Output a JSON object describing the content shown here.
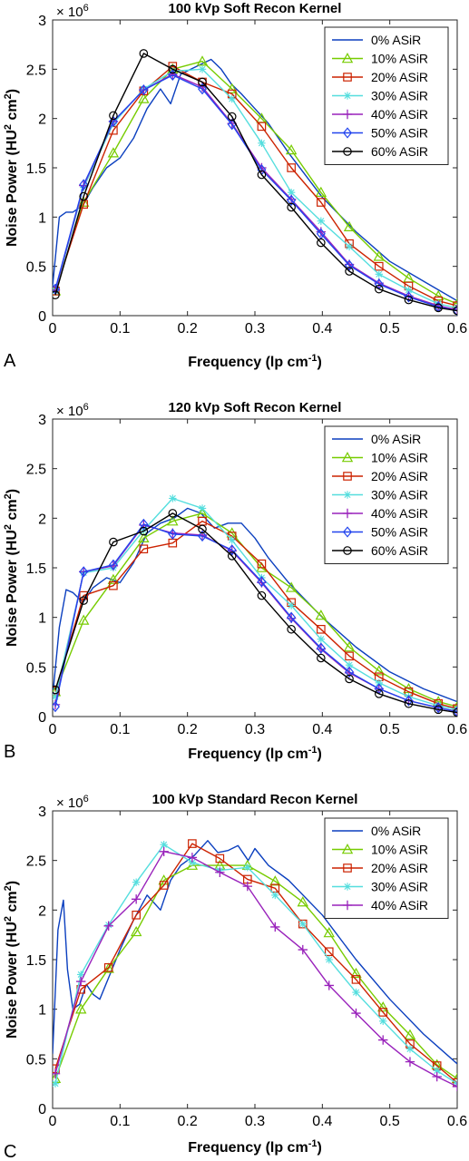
{
  "figure": {
    "colors": {
      "0% ASiR": "#0b3fbf",
      "10% ASiR": "#77cc00",
      "20% ASiR": "#cc2200",
      "30% ASiR": "#55dede",
      "40% ASiR": "#9922bb",
      "50% ASiR": "#2244ee",
      "60% ASiR": "#000000"
    },
    "markers": {
      "0% ASiR": "none",
      "10% ASiR": "triangle",
      "20% ASiR": "square",
      "30% ASiR": "asterisk",
      "40% ASiR": "plus",
      "50% ASiR": "diamond",
      "60% ASiR": "circle"
    }
  },
  "chart_data": [
    {
      "type": "line",
      "panel_label": "A",
      "title": "100 kVp Soft Recon Kernel",
      "xlabel": "Frequency (lp cm",
      "xlabel_sup": "-1",
      "xlabel_end": ")",
      "ylabel": "Noise Power (HU",
      "ylabel_sup": "2",
      "ylabel_mid": " cm",
      "ylabel_sup2": "2",
      "ylabel_end": ")",
      "y_multiplier": "× 10",
      "y_multiplier_exp": "6",
      "xlim": [
        0,
        0.6
      ],
      "ylim": [
        0,
        3
      ],
      "xticks": [
        "0",
        "0.1",
        "0.2",
        "0.3",
        "0.4",
        "0.5",
        "0.6"
      ],
      "yticks": [
        "0",
        "0.5",
        "1",
        "1.5",
        "2",
        "2.5",
        "3"
      ],
      "legend_placement": "top-right",
      "series": [
        {
          "name": "0% ASiR",
          "x": [
            0.0,
            0.01,
            0.02,
            0.03,
            0.045,
            0.06,
            0.08,
            0.1,
            0.12,
            0.14,
            0.16,
            0.175,
            0.19,
            0.205,
            0.22,
            0.235,
            0.25,
            0.265,
            0.28,
            0.3,
            0.32,
            0.35,
            0.4,
            0.45,
            0.5,
            0.55,
            0.6
          ],
          "y": [
            0.3,
            1.0,
            1.05,
            1.05,
            1.12,
            1.3,
            1.5,
            1.6,
            1.8,
            2.1,
            2.3,
            2.15,
            2.45,
            2.5,
            2.55,
            2.6,
            2.5,
            2.35,
            2.25,
            2.1,
            1.95,
            1.65,
            1.2,
            0.85,
            0.55,
            0.35,
            0.15
          ]
        },
        {
          "name": "10% ASiR",
          "x": [
            0.004,
            0.046,
            0.09,
            0.135,
            0.178,
            0.222,
            0.266,
            0.31,
            0.354,
            0.398,
            0.44,
            0.484,
            0.528,
            0.572,
            0.6
          ],
          "y": [
            0.25,
            1.15,
            1.65,
            2.2,
            2.5,
            2.58,
            2.3,
            2.0,
            1.68,
            1.25,
            0.9,
            0.6,
            0.38,
            0.2,
            0.12
          ]
        },
        {
          "name": "20% ASiR",
          "x": [
            0.004,
            0.046,
            0.09,
            0.135,
            0.178,
            0.222,
            0.266,
            0.31,
            0.354,
            0.398,
            0.44,
            0.484,
            0.528,
            0.572,
            0.6
          ],
          "y": [
            0.25,
            1.13,
            1.88,
            2.28,
            2.53,
            2.37,
            2.25,
            1.92,
            1.5,
            1.15,
            0.73,
            0.5,
            0.3,
            0.15,
            0.1
          ]
        },
        {
          "name": "30% ASiR",
          "x": [
            0.004,
            0.046,
            0.09,
            0.135,
            0.178,
            0.222,
            0.266,
            0.31,
            0.354,
            0.398,
            0.44,
            0.484,
            0.528,
            0.572,
            0.6
          ],
          "y": [
            0.25,
            1.3,
            1.95,
            2.3,
            2.48,
            2.5,
            2.2,
            1.75,
            1.25,
            0.96,
            0.7,
            0.42,
            0.26,
            0.12,
            0.08
          ]
        },
        {
          "name": "40% ASiR",
          "x": [
            0.004,
            0.046,
            0.09,
            0.135,
            0.178,
            0.222,
            0.266,
            0.31,
            0.354,
            0.398,
            0.44,
            0.484,
            0.528,
            0.572,
            0.6
          ],
          "y": [
            0.26,
            1.32,
            1.97,
            2.29,
            2.45,
            2.32,
            1.95,
            1.5,
            1.18,
            0.85,
            0.52,
            0.33,
            0.2,
            0.1,
            0.06
          ]
        },
        {
          "name": "50% ASiR",
          "x": [
            0.004,
            0.046,
            0.09,
            0.135,
            0.178,
            0.222,
            0.266,
            0.31,
            0.354,
            0.398,
            0.44,
            0.484,
            0.528,
            0.572,
            0.6
          ],
          "y": [
            0.27,
            1.33,
            1.97,
            2.29,
            2.44,
            2.3,
            1.94,
            1.48,
            1.17,
            0.83,
            0.51,
            0.32,
            0.19,
            0.09,
            0.05
          ]
        },
        {
          "name": "60% ASiR",
          "x": [
            0.004,
            0.046,
            0.09,
            0.135,
            0.178,
            0.222,
            0.266,
            0.31,
            0.354,
            0.398,
            0.44,
            0.484,
            0.528,
            0.572,
            0.6
          ],
          "y": [
            0.21,
            1.21,
            2.03,
            2.66,
            2.5,
            2.37,
            2.02,
            1.43,
            1.1,
            0.74,
            0.45,
            0.27,
            0.16,
            0.08,
            0.05
          ]
        }
      ]
    },
    {
      "type": "line",
      "panel_label": "B",
      "title": "120 kVp Soft Recon Kernel",
      "xlabel": "Frequency (lp cm",
      "xlabel_sup": "-1",
      "xlabel_end": ")",
      "ylabel": "Noise Power (HU",
      "ylabel_sup": "2",
      "ylabel_mid": " cm",
      "ylabel_sup2": "2",
      "ylabel_end": ")",
      "y_multiplier": "× 10",
      "y_multiplier_exp": "6",
      "xlim": [
        0,
        0.6
      ],
      "ylim": [
        0,
        3
      ],
      "xticks": [
        "0",
        "0.1",
        "0.2",
        "0.3",
        "0.4",
        "0.5",
        "0.6"
      ],
      "yticks": [
        "0",
        "0.5",
        "1",
        "1.5",
        "2",
        "2.5",
        "3"
      ],
      "legend_placement": "top-right",
      "series": [
        {
          "name": "0% ASiR",
          "x": [
            0.0,
            0.01,
            0.02,
            0.03,
            0.045,
            0.06,
            0.08,
            0.1,
            0.12,
            0.14,
            0.16,
            0.18,
            0.2,
            0.22,
            0.24,
            0.26,
            0.28,
            0.3,
            0.32,
            0.35,
            0.4,
            0.45,
            0.5,
            0.55,
            0.6
          ],
          "y": [
            0.2,
            0.9,
            1.28,
            1.25,
            1.15,
            1.3,
            1.4,
            1.35,
            1.55,
            1.85,
            1.95,
            2.0,
            2.1,
            2.05,
            1.9,
            1.95,
            1.95,
            1.8,
            1.6,
            1.35,
            1.0,
            0.7,
            0.45,
            0.28,
            0.15
          ]
        },
        {
          "name": "10% ASiR",
          "x": [
            0.004,
            0.046,
            0.09,
            0.135,
            0.178,
            0.222,
            0.266,
            0.31,
            0.354,
            0.398,
            0.44,
            0.484,
            0.528,
            0.572,
            0.6
          ],
          "y": [
            0.25,
            0.97,
            1.38,
            1.8,
            1.97,
            2.05,
            1.85,
            1.5,
            1.3,
            1.02,
            0.7,
            0.46,
            0.28,
            0.15,
            0.1
          ]
        },
        {
          "name": "20% ASiR",
          "x": [
            0.004,
            0.046,
            0.09,
            0.135,
            0.178,
            0.222,
            0.266,
            0.31,
            0.354,
            0.398,
            0.44,
            0.484,
            0.528,
            0.572,
            0.6
          ],
          "y": [
            0.26,
            1.22,
            1.32,
            1.69,
            1.75,
            1.97,
            1.82,
            1.54,
            1.15,
            0.88,
            0.61,
            0.4,
            0.25,
            0.13,
            0.08
          ]
        },
        {
          "name": "30% ASiR",
          "x": [
            0.004,
            0.046,
            0.09,
            0.135,
            0.178,
            0.222,
            0.266,
            0.31,
            0.354,
            0.398,
            0.44,
            0.484,
            0.528,
            0.572,
            0.6
          ],
          "y": [
            0.2,
            1.45,
            1.5,
            1.88,
            2.2,
            2.1,
            1.78,
            1.4,
            1.12,
            0.78,
            0.52,
            0.34,
            0.2,
            0.11,
            0.07
          ]
        },
        {
          "name": "40% ASiR",
          "x": [
            0.004,
            0.046,
            0.09,
            0.135,
            0.178,
            0.222,
            0.266,
            0.31,
            0.354,
            0.398,
            0.44,
            0.484,
            0.528,
            0.572,
            0.6
          ],
          "y": [
            0.12,
            1.46,
            1.52,
            1.93,
            1.85,
            1.83,
            1.67,
            1.35,
            0.99,
            0.68,
            0.44,
            0.28,
            0.16,
            0.09,
            0.05
          ]
        },
        {
          "name": "50% ASiR",
          "x": [
            0.004,
            0.046,
            0.09,
            0.135,
            0.178,
            0.222,
            0.266,
            0.31,
            0.354,
            0.398,
            0.44,
            0.484,
            0.528,
            0.572,
            0.6
          ],
          "y": [
            0.1,
            1.46,
            1.53,
            1.94,
            1.84,
            1.82,
            1.68,
            1.36,
            1.0,
            0.69,
            0.45,
            0.28,
            0.16,
            0.09,
            0.05
          ]
        },
        {
          "name": "60% ASiR",
          "x": [
            0.004,
            0.046,
            0.09,
            0.135,
            0.178,
            0.222,
            0.266,
            0.31,
            0.354,
            0.398,
            0.44,
            0.484,
            0.528,
            0.572,
            0.6
          ],
          "y": [
            0.27,
            1.17,
            1.76,
            1.87,
            2.05,
            1.89,
            1.62,
            1.22,
            0.88,
            0.59,
            0.38,
            0.23,
            0.13,
            0.07,
            0.04
          ]
        }
      ]
    },
    {
      "type": "line",
      "panel_label": "C",
      "title": "100 kVp Standard Recon Kernel",
      "xlabel": "Frequency (lp cm",
      "xlabel_sup": "-1",
      "xlabel_end": ")",
      "ylabel": "Noise Power (HU",
      "ylabel_sup": "2",
      "ylabel_mid": " cm",
      "ylabel_sup2": "2",
      "ylabel_end": ")",
      "y_multiplier": "× 10",
      "y_multiplier_exp": "6",
      "xlim": [
        0,
        0.6
      ],
      "ylim": [
        0,
        3
      ],
      "xticks": [
        "0",
        "0.1",
        "0.2",
        "0.3",
        "0.4",
        "0.5",
        "0.6"
      ],
      "yticks": [
        "0",
        "0.5",
        "1",
        "1.5",
        "2",
        "2.5",
        "3"
      ],
      "legend_placement": "top-right",
      "series": [
        {
          "name": "0% ASiR",
          "x": [
            0.0,
            0.008,
            0.016,
            0.022,
            0.03,
            0.04,
            0.05,
            0.06,
            0.07,
            0.085,
            0.1,
            0.12,
            0.14,
            0.16,
            0.175,
            0.19,
            0.21,
            0.23,
            0.245,
            0.26,
            0.275,
            0.29,
            0.3,
            0.32,
            0.35,
            0.4,
            0.45,
            0.5,
            0.55,
            0.6
          ],
          "y": [
            0.55,
            1.8,
            2.1,
            1.4,
            1.0,
            1.05,
            1.25,
            1.15,
            1.1,
            1.35,
            1.6,
            1.9,
            2.15,
            2.0,
            2.3,
            2.45,
            2.55,
            2.7,
            2.58,
            2.6,
            2.65,
            2.5,
            2.62,
            2.45,
            2.3,
            1.95,
            1.5,
            1.1,
            0.75,
            0.45
          ]
        },
        {
          "name": "10% ASiR",
          "x": [
            0.004,
            0.042,
            0.083,
            0.124,
            0.165,
            0.207,
            0.248,
            0.289,
            0.33,
            0.371,
            0.41,
            0.45,
            0.49,
            0.53,
            0.57,
            0.6
          ],
          "y": [
            0.3,
            1.0,
            1.41,
            1.78,
            2.3,
            2.45,
            2.45,
            2.45,
            2.29,
            2.08,
            1.77,
            1.36,
            1.02,
            0.74,
            0.44,
            0.3
          ]
        },
        {
          "name": "20% ASiR",
          "x": [
            0.004,
            0.042,
            0.083,
            0.124,
            0.165,
            0.207,
            0.248,
            0.289,
            0.33,
            0.371,
            0.41,
            0.45,
            0.49,
            0.53,
            0.57,
            0.6
          ],
          "y": [
            0.4,
            1.2,
            1.42,
            1.95,
            2.25,
            2.67,
            2.52,
            2.31,
            2.22,
            1.86,
            1.58,
            1.3,
            0.97,
            0.65,
            0.43,
            0.26
          ]
        },
        {
          "name": "30% ASiR",
          "x": [
            0.004,
            0.042,
            0.083,
            0.124,
            0.165,
            0.207,
            0.248,
            0.289,
            0.33,
            0.371,
            0.41,
            0.45,
            0.49,
            0.53,
            0.57,
            0.6
          ],
          "y": [
            0.25,
            1.35,
            1.85,
            2.28,
            2.66,
            2.48,
            2.4,
            2.43,
            2.15,
            1.86,
            1.5,
            1.17,
            0.88,
            0.6,
            0.38,
            0.25
          ]
        },
        {
          "name": "40% ASiR",
          "x": [
            0.004,
            0.042,
            0.083,
            0.124,
            0.165,
            0.207,
            0.248,
            0.289,
            0.33,
            0.371,
            0.41,
            0.45,
            0.49,
            0.53,
            0.57,
            0.6
          ],
          "y": [
            0.35,
            1.28,
            1.84,
            2.11,
            2.59,
            2.53,
            2.38,
            2.24,
            1.83,
            1.6,
            1.24,
            0.96,
            0.69,
            0.47,
            0.32,
            0.22
          ]
        }
      ]
    }
  ]
}
